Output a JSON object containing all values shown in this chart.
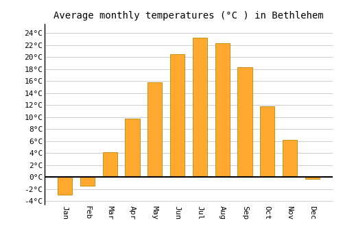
{
  "title": "Average monthly temperatures (°C ) in Bethlehem",
  "months": [
    "Jan",
    "Feb",
    "Mar",
    "Apr",
    "May",
    "Jun",
    "Jul",
    "Aug",
    "Sep",
    "Oct",
    "Nov",
    "Dec"
  ],
  "values": [
    -3.0,
    -1.5,
    4.1,
    9.7,
    15.8,
    20.5,
    23.2,
    22.3,
    18.3,
    11.8,
    6.2,
    -0.3
  ],
  "bar_color": "#FFA830",
  "bar_edge_color": "#BB8800",
  "ylim": [
    -4.5,
    25.5
  ],
  "yticks": [
    -4,
    -2,
    0,
    2,
    4,
    6,
    8,
    10,
    12,
    14,
    16,
    18,
    20,
    22,
    24
  ],
  "ytick_labels": [
    "-4°C",
    "-2°C",
    "0°C",
    "2°C",
    "4°C",
    "6°C",
    "8°C",
    "10°C",
    "12°C",
    "14°C",
    "16°C",
    "18°C",
    "20°C",
    "22°C",
    "24°C"
  ],
  "background_color": "#ffffff",
  "grid_color": "#cccccc",
  "title_fontsize": 10,
  "tick_fontsize": 8,
  "zero_line_color": "#000000"
}
